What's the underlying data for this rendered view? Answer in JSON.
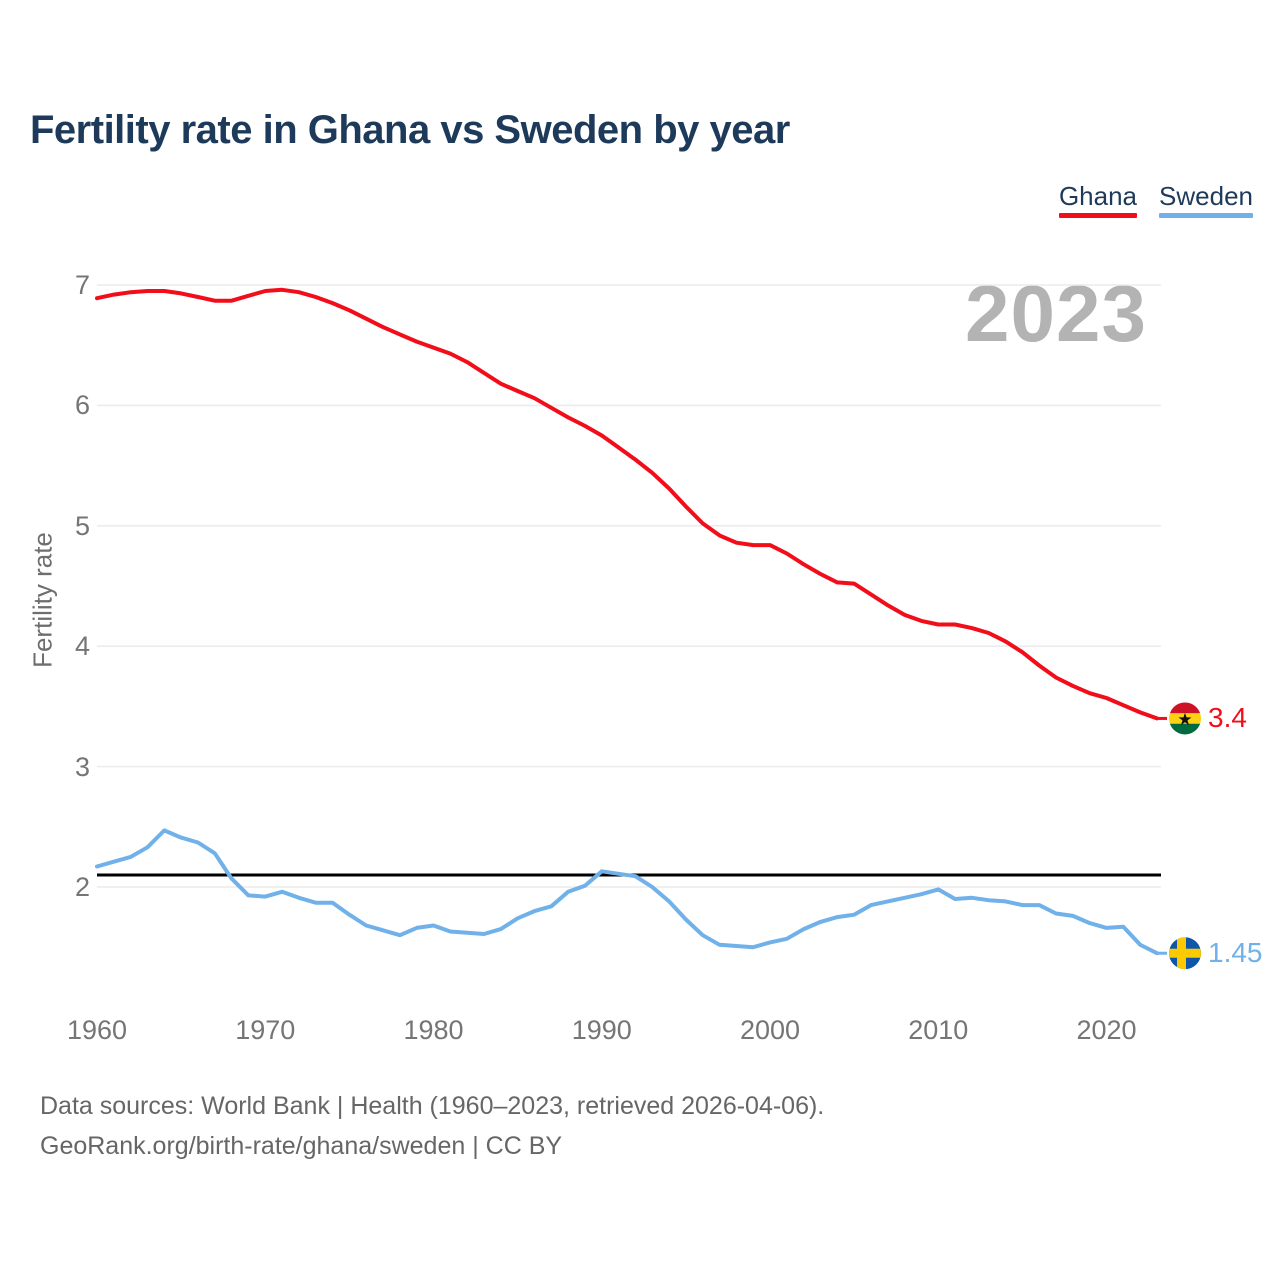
{
  "header": {
    "title": "Fertility rate in Ghana vs Sweden by year"
  },
  "legend": [
    {
      "label": "Ghana",
      "color": "#f20d1a"
    },
    {
      "label": "Sweden",
      "color": "#6fb1e8"
    }
  ],
  "watermark": "2023",
  "colors": {
    "title_text": "#1e3a5a",
    "axis_text": "#757575",
    "gridline": "#ececec",
    "watermark_text": "#b3b3b3",
    "footer_text": "#666666",
    "reference_line": "#000000"
  },
  "chart_data": {
    "type": "line",
    "title": "Fertility rate in Ghana vs Sweden by year",
    "xlabel": "",
    "ylabel": "Fertility rate",
    "xlim": [
      1960,
      2023
    ],
    "ylim": [
      2,
      7
    ],
    "yticks": [
      2,
      3,
      4,
      5,
      6,
      7
    ],
    "xticks": [
      1960,
      1970,
      1980,
      1990,
      2000,
      2010,
      2020
    ],
    "grid": true,
    "legend_position": "top-right",
    "reference_line": {
      "value": 2.1,
      "color": "#000000"
    },
    "x": [
      1960,
      1961,
      1962,
      1963,
      1964,
      1965,
      1966,
      1967,
      1968,
      1969,
      1970,
      1971,
      1972,
      1973,
      1974,
      1975,
      1976,
      1977,
      1978,
      1979,
      1980,
      1981,
      1982,
      1983,
      1984,
      1985,
      1986,
      1987,
      1988,
      1989,
      1990,
      1991,
      1992,
      1993,
      1994,
      1995,
      1996,
      1997,
      1998,
      1999,
      2000,
      2001,
      2002,
      2003,
      2004,
      2005,
      2006,
      2007,
      2008,
      2009,
      2010,
      2011,
      2012,
      2013,
      2014,
      2015,
      2016,
      2017,
      2018,
      2019,
      2020,
      2021,
      2022,
      2023
    ],
    "series": [
      {
        "name": "Ghana",
        "color": "#f20d1a",
        "end_label": "3.4",
        "end_marker": "ghana-flag",
        "flag_colors": {
          "red": "#ce1126",
          "gold": "#fcd116",
          "green": "#006b3f",
          "star": "#111111"
        },
        "values": [
          6.89,
          6.92,
          6.94,
          6.95,
          6.95,
          6.93,
          6.9,
          6.87,
          6.87,
          6.91,
          6.95,
          6.96,
          6.94,
          6.9,
          6.85,
          6.79,
          6.72,
          6.65,
          6.59,
          6.53,
          6.48,
          6.43,
          6.36,
          6.27,
          6.18,
          6.12,
          6.06,
          5.98,
          5.9,
          5.83,
          5.75,
          5.65,
          5.55,
          5.44,
          5.31,
          5.16,
          5.02,
          4.92,
          4.86,
          4.84,
          4.84,
          4.77,
          4.68,
          4.6,
          4.53,
          4.52,
          4.43,
          4.34,
          4.26,
          4.21,
          4.18,
          4.18,
          4.15,
          4.11,
          4.04,
          3.95,
          3.84,
          3.74,
          3.67,
          3.61,
          3.57,
          3.51,
          3.45,
          3.4
        ]
      },
      {
        "name": "Sweden",
        "color": "#6fb1e8",
        "end_label": "1.45",
        "end_marker": "sweden-flag",
        "flag_colors": {
          "blue": "#0e57a8",
          "cross": "#fdca00"
        },
        "values": [
          2.17,
          2.21,
          2.25,
          2.33,
          2.47,
          2.41,
          2.37,
          2.28,
          2.07,
          1.93,
          1.92,
          1.96,
          1.91,
          1.87,
          1.87,
          1.77,
          1.68,
          1.64,
          1.6,
          1.66,
          1.68,
          1.63,
          1.62,
          1.61,
          1.65,
          1.74,
          1.8,
          1.84,
          1.96,
          2.01,
          2.13,
          2.11,
          2.09,
          2.0,
          1.88,
          1.73,
          1.6,
          1.52,
          1.51,
          1.5,
          1.54,
          1.57,
          1.65,
          1.71,
          1.75,
          1.77,
          1.85,
          1.88,
          1.91,
          1.94,
          1.98,
          1.9,
          1.91,
          1.89,
          1.88,
          1.85,
          1.85,
          1.78,
          1.76,
          1.7,
          1.66,
          1.67,
          1.52,
          1.45
        ]
      }
    ]
  },
  "footer": {
    "line1": "Data sources: World Bank | Health (1960–2023, retrieved 2026-04-06).",
    "line2": "GeoRank.org/birth-rate/ghana/sweden | CC BY"
  }
}
